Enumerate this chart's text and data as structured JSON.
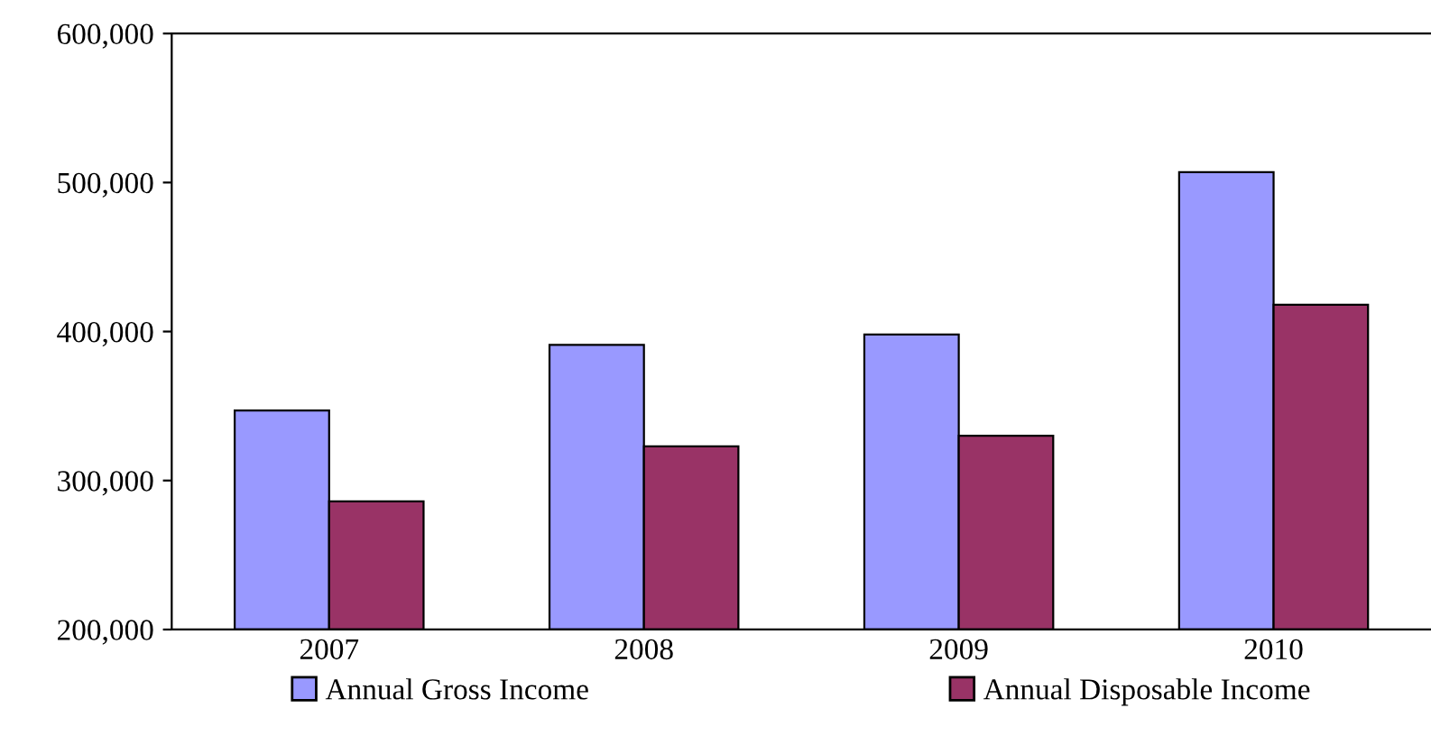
{
  "chart_data": {
    "type": "bar",
    "categories": [
      "2007",
      "2008",
      "2009",
      "2010"
    ],
    "series": [
      {
        "name": "Annual Gross Income",
        "color": "#9999ff",
        "values": [
          347000,
          391000,
          398000,
          507000
        ]
      },
      {
        "name": "Annual Disposable Income",
        "color": "#993366",
        "values": [
          286000,
          323000,
          330000,
          418000
        ]
      }
    ],
    "ylim": [
      200000,
      600000
    ],
    "yticks": [
      {
        "value": 200000,
        "label": "200,000"
      },
      {
        "value": 300000,
        "label": "300,000"
      },
      {
        "value": 400000,
        "label": "400,000"
      },
      {
        "value": 500000,
        "label": "500,000"
      },
      {
        "value": 600000,
        "label": "600,000"
      }
    ],
    "grid": false,
    "legend": "bottom"
  }
}
